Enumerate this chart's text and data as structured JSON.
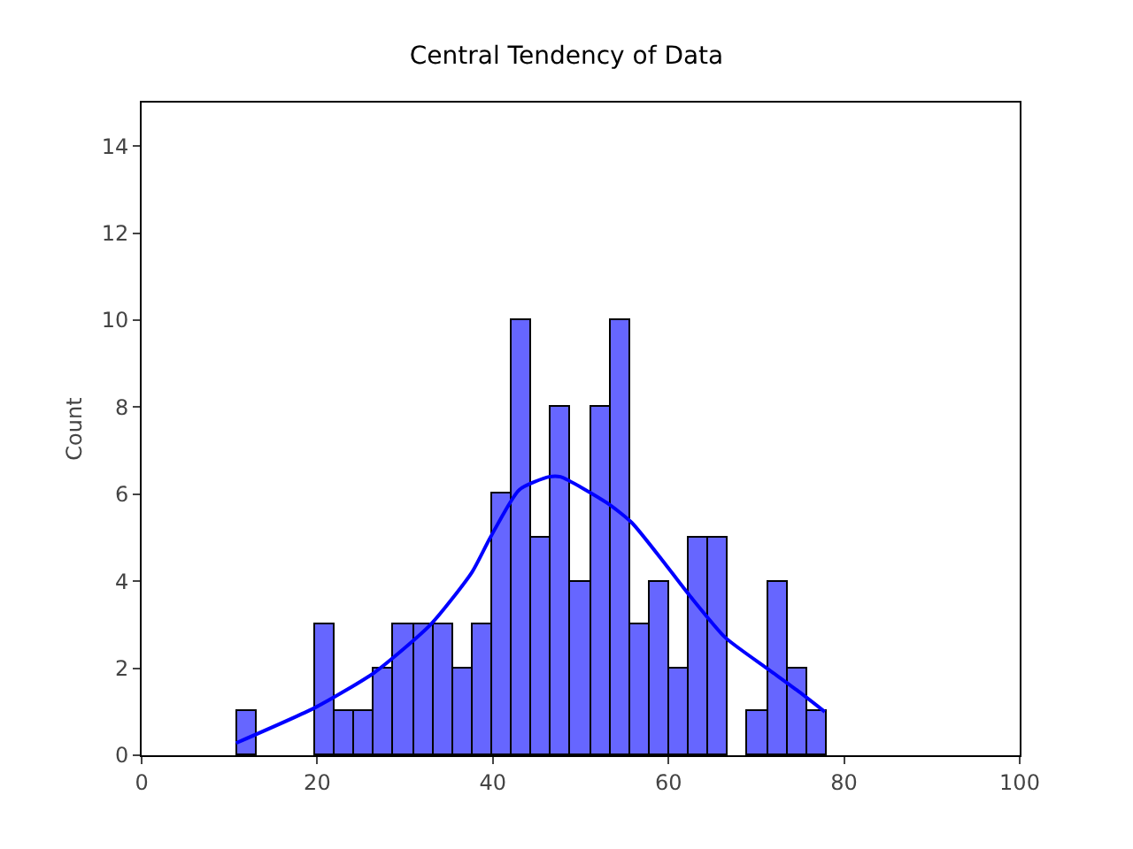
{
  "chart_data": {
    "type": "histogram",
    "title": "Central Tendency of Data",
    "ylabel": "Count",
    "bins": [
      10.8,
      13.04,
      15.28,
      17.52,
      19.76,
      22.0,
      24.24,
      26.48,
      28.72,
      30.96,
      33.2,
      35.44,
      37.68,
      39.92,
      42.16,
      44.4,
      46.64,
      48.88,
      51.12,
      53.36,
      55.6,
      57.84,
      60.08,
      62.32,
      64.56,
      66.8,
      69.04,
      71.28,
      73.52,
      75.76,
      78.0
    ],
    "values": [
      1,
      0,
      0,
      0,
      3,
      1,
      1,
      2,
      3,
      3,
      3,
      2,
      3,
      6,
      10,
      5,
      8,
      4,
      8,
      10,
      3,
      4,
      2,
      5,
      5,
      0,
      1,
      4,
      2,
      1
    ],
    "color": "#6666ff",
    "series": [
      {
        "type": "line",
        "color": "#0000ff",
        "x": [
          10.75,
          19.8,
          26.5,
          32.9,
          37.6,
          39.7,
          43,
          46.4,
          47.7,
          53,
          55.8,
          59.8,
          62.5,
          66.5,
          71.2,
          74.6,
          77.8
        ],
        "values": [
          0.28,
          1.1,
          1.9,
          3.0,
          4.2,
          5.0,
          6.1,
          6.4,
          6.4,
          5.8,
          5.35,
          4.35,
          3.65,
          2.7,
          2.0,
          1.5,
          1.0
        ]
      }
    ],
    "xlim": [
      0,
      100
    ],
    "xticks": [
      0,
      20,
      40,
      60,
      80,
      100
    ],
    "ylim": [
      0,
      15
    ],
    "yticks": [
      0,
      2,
      4,
      6,
      8,
      10,
      12,
      14
    ],
    "grid": false
  }
}
